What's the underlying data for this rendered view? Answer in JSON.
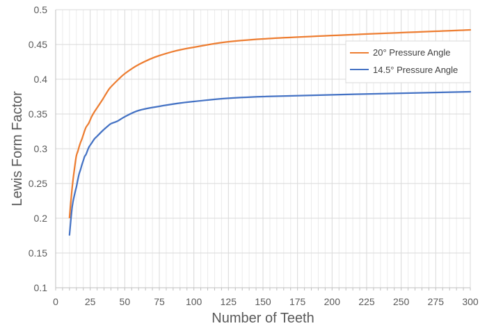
{
  "chart_data": {
    "type": "line",
    "xlabel": "Number of Teeth",
    "ylabel": "Lewis Form Factor",
    "xlim": [
      0,
      300
    ],
    "ylim": [
      0.1,
      0.5
    ],
    "x_ticks": [
      0,
      25,
      50,
      75,
      100,
      125,
      150,
      175,
      200,
      225,
      250,
      275,
      300
    ],
    "y_ticks": [
      0.1,
      0.15,
      0.2,
      0.25,
      0.3,
      0.35,
      0.4,
      0.45,
      0.5
    ],
    "x_tick_labels": [
      "0",
      "25",
      "50",
      "75",
      "100",
      "125",
      "150",
      "175",
      "200",
      "225",
      "250",
      "275",
      "300"
    ],
    "y_tick_labels": [
      "0.1",
      "0.15",
      "0.2",
      "0.25",
      "0.3",
      "0.35",
      "0.4",
      "0.45",
      "0.5"
    ],
    "grid": true,
    "legend_position": "top-right",
    "series": [
      {
        "name": "20° Pressure Angle",
        "color": "#ed7d31",
        "x": [
          10,
          12,
          14,
          15,
          16,
          17,
          18,
          19,
          20,
          21,
          22,
          24,
          26,
          28,
          30,
          34,
          38,
          40,
          45,
          50,
          60,
          75,
          100,
          150,
          300
        ],
        "y": [
          0.201,
          0.245,
          0.277,
          0.29,
          0.296,
          0.303,
          0.309,
          0.314,
          0.32,
          0.326,
          0.331,
          0.337,
          0.346,
          0.353,
          0.359,
          0.371,
          0.384,
          0.389,
          0.399,
          0.408,
          0.421,
          0.434,
          0.446,
          0.458,
          0.471
        ]
      },
      {
        "name": "14.5° Pressure Angle",
        "color": "#4472c4",
        "x": [
          10,
          12,
          14,
          15,
          16,
          17,
          18,
          19,
          20,
          21,
          22,
          24,
          26,
          28,
          30,
          34,
          38,
          40,
          45,
          50,
          60,
          75,
          100,
          150,
          300
        ],
        "y": [
          0.176,
          0.217,
          0.237,
          0.245,
          0.255,
          0.264,
          0.27,
          0.277,
          0.283,
          0.289,
          0.292,
          0.302,
          0.308,
          0.314,
          0.318,
          0.326,
          0.333,
          0.336,
          0.34,
          0.346,
          0.355,
          0.361,
          0.368,
          0.375,
          0.382
        ]
      }
    ]
  }
}
